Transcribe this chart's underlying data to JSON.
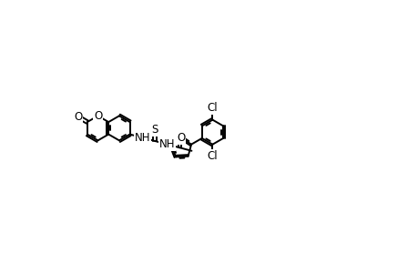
{
  "bg_color": "#ffffff",
  "lw": 1.4,
  "lw2": 1.4,
  "fs": 8.5,
  "B": 0.38,
  "xlim": [
    0,
    10
  ],
  "ylim": [
    0,
    6.5
  ]
}
